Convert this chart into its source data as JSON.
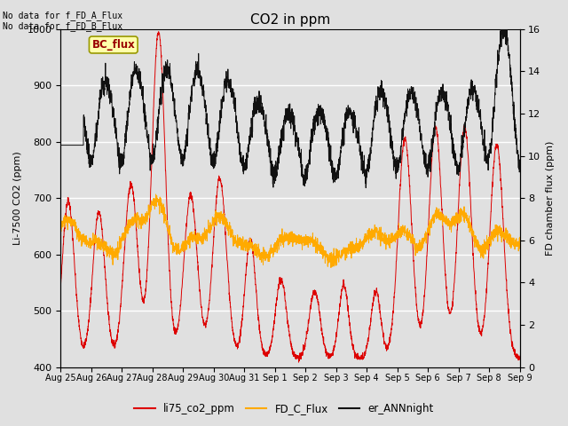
{
  "title": "CO2 in ppm",
  "ylabel_left": "Li-7500 CO2 (ppm)",
  "ylabel_right": "FD chamber flux (ppm)",
  "text_no_data_1": "No data for f_FD_A_Flux",
  "text_no_data_2": "No data for f_FD_B_Flux",
  "bc_flux_label": "BC_flux",
  "legend_entries": [
    "li75_co2_ppm",
    "FD_C_Flux",
    "er_ANNnight"
  ],
  "line_colors": [
    "#dd0000",
    "#ffaa00",
    "#111111"
  ],
  "ylim_left": [
    400,
    1000
  ],
  "ylim_right": [
    0,
    16
  ],
  "background_color": "#e0e0e0",
  "grid_color": "#ffffff",
  "n_points": 3000,
  "x_start": 0,
  "x_end": 15.0,
  "xtick_labels": [
    "Aug 25",
    "Aug 26",
    "Aug 27",
    "Aug 28",
    "Aug 29",
    "Aug 30",
    "Aug 31",
    "Sep 1",
    "Sep 2",
    "Sep 3",
    "Sep 4",
    "Sep 5",
    "Sep 6",
    "Sep 7",
    "Sep 8",
    "Sep 9"
  ],
  "xtick_positions": [
    0,
    1,
    2,
    3,
    4,
    5,
    6,
    7,
    8,
    9,
    10,
    11,
    12,
    13,
    14,
    15
  ]
}
